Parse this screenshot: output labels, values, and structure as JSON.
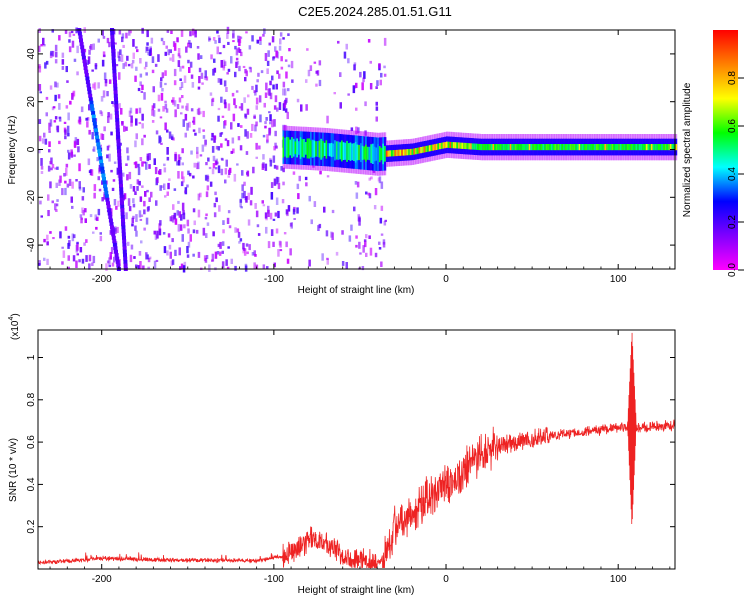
{
  "title": "C2E5.2024.285.01.51.G11",
  "chart_data": [
    {
      "type": "heatmap",
      "xlabel": "Height of straight line (km)",
      "ylabel": "Frequency (Hz)",
      "xlim": [
        -237,
        133
      ],
      "ylim": [
        -50,
        50
      ],
      "xticks": [
        -200,
        -100,
        0,
        100
      ],
      "yticks": [
        -40,
        -20,
        0,
        20,
        40
      ],
      "colorbar": {
        "label": "Normalized spectral amplitude",
        "range": [
          0,
          1
        ],
        "ticks": [
          "0.0",
          "0.2",
          "0.4",
          "0.6",
          "0.8"
        ],
        "tick_values": [
          0,
          0.2,
          0.4,
          0.6,
          0.8
        ],
        "colors": [
          "#ff00ff",
          "#8000ff",
          "#0000ff",
          "#00ffff",
          "#00ff00",
          "#ffff00",
          "#ff8000",
          "#ff0000"
        ]
      },
      "features": {
        "noise_region": [
          -237,
          -35
        ],
        "diagonal_traces": [
          {
            "x_at_top": -213,
            "x_at_bottom": -190
          },
          {
            "x_at_top": -194,
            "x_at_bottom": -186
          }
        ],
        "signal_band": {
          "start": -95,
          "points": [
            [
              -95,
              1
            ],
            [
              -70,
              0
            ],
            [
              -40,
              -2
            ],
            [
              -20,
              -1
            ],
            [
              0,
              2
            ],
            [
              20,
              1
            ],
            [
              60,
              1
            ],
            [
              100,
              1
            ],
            [
              133,
              1
            ]
          ]
        }
      }
    },
    {
      "type": "line",
      "xlabel": "Height of straight line (km)",
      "ylabel": "SNR (10 * v/v)",
      "scale_note": "(x10",
      "scale_exp": "4",
      "xlim": [
        -237,
        133
      ],
      "ylim": [
        0,
        1.13
      ],
      "xticks": [
        -200,
        -100,
        0,
        100
      ],
      "yticks": [
        0.2,
        0.4,
        0.6,
        0.8,
        1
      ],
      "ytick_labels": [
        "0.2",
        "0.4",
        "0.6",
        "0.8",
        "1"
      ],
      "line_color": "#ee2222",
      "trend": [
        [
          -237,
          0.03
        ],
        [
          -215,
          0.04
        ],
        [
          -200,
          0.05
        ],
        [
          -150,
          0.04
        ],
        [
          -110,
          0.04
        ],
        [
          -95,
          0.06
        ],
        [
          -85,
          0.1
        ],
        [
          -77,
          0.15
        ],
        [
          -65,
          0.1
        ],
        [
          -55,
          0.05
        ],
        [
          -40,
          0.03
        ],
        [
          -37,
          0.05
        ],
        [
          -30,
          0.2
        ],
        [
          -20,
          0.27
        ],
        [
          -10,
          0.33
        ],
        [
          0,
          0.38
        ],
        [
          10,
          0.46
        ],
        [
          20,
          0.54
        ],
        [
          30,
          0.58
        ],
        [
          40,
          0.6
        ],
        [
          60,
          0.63
        ],
        [
          80,
          0.65
        ],
        [
          100,
          0.67
        ],
        [
          108,
          0.67
        ],
        [
          115,
          0.67
        ],
        [
          133,
          0.68
        ]
      ],
      "spike": {
        "x": 108,
        "max": 1.13,
        "min": 0.19
      }
    }
  ]
}
